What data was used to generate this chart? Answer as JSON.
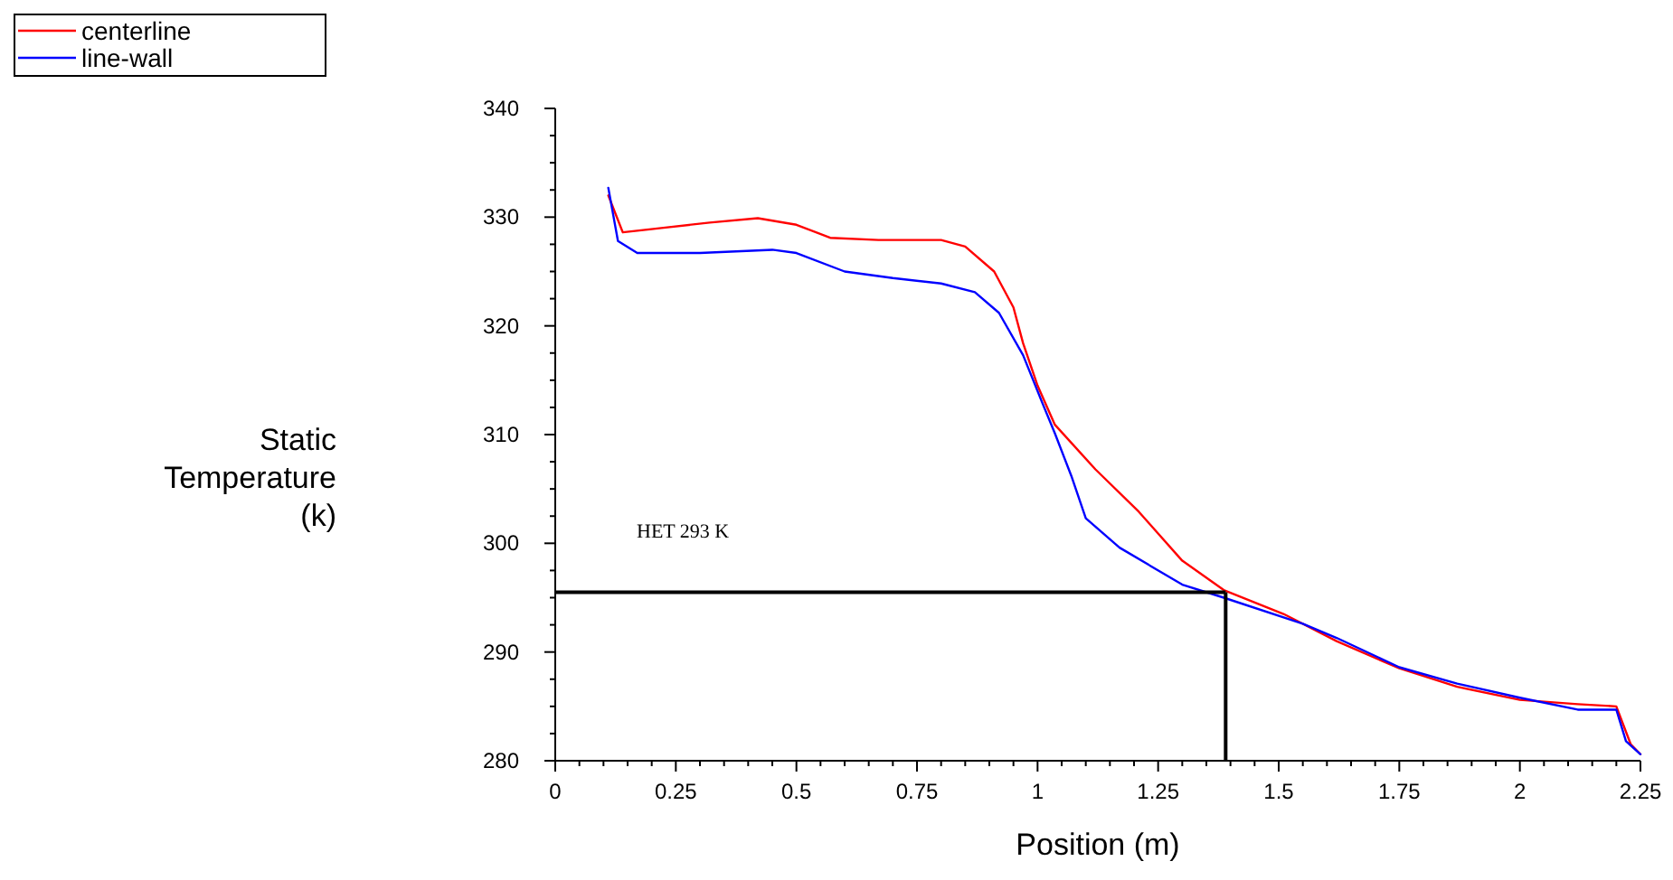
{
  "chart_data": {
    "type": "line",
    "xlabel": "Position (m)",
    "ylabel": "Static Temperature (k)",
    "xlim": [
      0,
      2.25
    ],
    "ylim": [
      280,
      340
    ],
    "xticks": [
      0,
      {
        "value": 0.05,
        "label": null
      },
      {
        "value": 0.1,
        "label": null
      },
      {
        "value": 0.15,
        "label": null
      },
      {
        "value": 0.2,
        "label": null
      },
      0.25,
      {
        "value": 0.3,
        "label": null
      },
      {
        "value": 0.35,
        "label": null
      },
      {
        "value": 0.4,
        "label": null
      },
      {
        "value": 0.45,
        "label": null
      },
      0.5,
      {
        "value": 0.55,
        "label": null
      },
      {
        "value": 0.6,
        "label": null
      },
      {
        "value": 0.65,
        "label": null
      },
      {
        "value": 0.7,
        "label": null
      },
      0.75,
      {
        "value": 0.8,
        "label": null
      },
      {
        "value": 0.85,
        "label": null
      },
      {
        "value": 0.9,
        "label": null
      },
      {
        "value": 0.95,
        "label": null
      },
      1,
      {
        "value": 1.05,
        "label": null
      },
      {
        "value": 1.1,
        "label": null
      },
      {
        "value": 1.15,
        "label": null
      },
      {
        "value": 1.2,
        "label": null
      },
      1.25,
      {
        "value": 1.3,
        "label": null
      },
      {
        "value": 1.35,
        "label": null
      },
      {
        "value": 1.4,
        "label": null
      },
      {
        "value": 1.45,
        "label": null
      },
      1.5,
      {
        "value": 1.55,
        "label": null
      },
      {
        "value": 1.6,
        "label": null
      },
      {
        "value": 1.65,
        "label": null
      },
      {
        "value": 1.7,
        "label": null
      },
      1.75,
      {
        "value": 1.8,
        "label": null
      },
      {
        "value": 1.85,
        "label": null
      },
      {
        "value": 1.9,
        "label": null
      },
      {
        "value": 1.95,
        "label": null
      },
      2,
      {
        "value": 2.05,
        "label": null
      },
      {
        "value": 2.1,
        "label": null
      },
      {
        "value": 2.15,
        "label": null
      },
      {
        "value": 2.2,
        "label": null
      },
      2.25
    ],
    "yticks": [
      280,
      {
        "value": 282.5,
        "label": null
      },
      {
        "value": 285,
        "label": null
      },
      {
        "value": 287.5,
        "label": null
      },
      290,
      {
        "value": 292.5,
        "label": null
      },
      {
        "value": 295,
        "label": null
      },
      {
        "value": 297.5,
        "label": null
      },
      300,
      {
        "value": 302.5,
        "label": null
      },
      {
        "value": 305,
        "label": null
      },
      {
        "value": 307.5,
        "label": null
      },
      310,
      {
        "value": 312.5,
        "label": null
      },
      {
        "value": 315,
        "label": null
      },
      {
        "value": 317.5,
        "label": null
      },
      320,
      {
        "value": 322.5,
        "label": null
      },
      {
        "value": 325,
        "label": null
      },
      {
        "value": 327.5,
        "label": null
      },
      330,
      {
        "value": 332.5,
        "label": null
      },
      {
        "value": 335,
        "label": null
      },
      {
        "value": 337.5,
        "label": null
      },
      340
    ],
    "legend": "top left",
    "grid": false,
    "line_style": "solid",
    "marker": "none",
    "series": [
      {
        "name": "centerline",
        "color": "#ff0000",
        "x": [
          0.11,
          0.14,
          0.22,
          0.32,
          0.42,
          0.5,
          0.57,
          0.67,
          0.8,
          0.85,
          0.91,
          0.95,
          0.97,
          1.0,
          1.036,
          1.12,
          1.21,
          1.3,
          1.386,
          1.51,
          1.62,
          1.75,
          1.87,
          2.0,
          2.12,
          2.2,
          2.23,
          2.25
        ],
        "values": [
          332,
          328.6,
          329,
          329.5,
          329.9,
          329.3,
          328.1,
          327.9,
          327.9,
          327.3,
          325,
          321.7,
          318.4,
          314.5,
          310.9,
          306.8,
          302.9,
          298.4,
          295.7,
          293.5,
          291,
          288.5,
          286.8,
          285.6,
          285.2,
          285,
          281.5,
          280.6
        ]
      },
      {
        "name": "line-wall",
        "color": "#0000ff",
        "x": [
          0.11,
          0.13,
          0.17,
          0.3,
          0.45,
          0.5,
          0.6,
          0.7,
          0.8,
          0.87,
          0.92,
          0.97,
          1.01,
          1.036,
          1.07,
          1.1,
          1.17,
          1.3,
          1.386,
          1.55,
          1.62,
          1.75,
          1.87,
          2.0,
          2.12,
          2.2,
          2.22,
          2.25
        ],
        "values": [
          332.7,
          327.8,
          326.7,
          326.7,
          327,
          326.7,
          325,
          324.4,
          323.9,
          323.1,
          321.2,
          317.3,
          312.9,
          310.1,
          306.2,
          302.3,
          299.6,
          296.2,
          295,
          292.6,
          291.3,
          288.6,
          287.1,
          285.8,
          284.7,
          284.7,
          281.8,
          280.6
        ]
      }
    ],
    "ref_lines": [
      {
        "axis": "y",
        "value": 295.5,
        "color": "#000000"
      },
      {
        "axis": "x",
        "value": 1.39,
        "color": "#000000"
      }
    ],
    "annotations": [
      "HET 293 K"
    ]
  }
}
